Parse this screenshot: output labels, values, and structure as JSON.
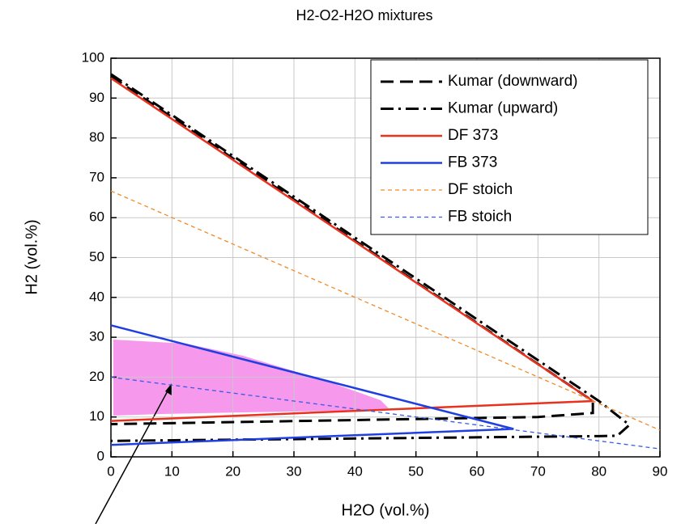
{
  "chart_data": {
    "type": "line",
    "title": "H2-O2-H2O mixtures",
    "x_label": "H2O (vol.%)",
    "y_label": "H2 (vol.%)",
    "xlim": [
      0,
      90
    ],
    "ylim": [
      0,
      100
    ],
    "xticks": [
      0,
      10,
      20,
      30,
      40,
      50,
      60,
      70,
      80,
      90
    ],
    "yticks": [
      0,
      10,
      20,
      30,
      40,
      50,
      60,
      70,
      80,
      90,
      100
    ],
    "grid": true,
    "legend": "upper right",
    "series": [
      {
        "name": "Kumar (downward)",
        "color": "#000000",
        "dash": "dashed",
        "width": 3,
        "x": [
          0,
          79,
          79,
          70,
          0
        ],
        "values": [
          95.5,
          14,
          11,
          10,
          8.2
        ]
      },
      {
        "name": "Kumar (upward)",
        "color": "#000000",
        "dash": "dashdot",
        "width": 3,
        "x": [
          0,
          80,
          85,
          83,
          80,
          0
        ],
        "values": [
          96,
          14,
          8,
          5.3,
          5.2,
          4
        ]
      },
      {
        "name": "DF 373",
        "color": "#e8321e",
        "dash": "solid",
        "width": 2.5,
        "x": [
          0,
          79,
          0
        ],
        "values": [
          95,
          14,
          9
        ]
      },
      {
        "name": "FB 373",
        "color": "#1f3fe0",
        "dash": "solid",
        "width": 2.5,
        "x": [
          0,
          66,
          0
        ],
        "values": [
          33,
          7,
          3
        ]
      },
      {
        "name": "DF stoich",
        "color": "#f08a24",
        "dash": "fine",
        "width": 1.3,
        "x": [
          0,
          90
        ],
        "values": [
          66.7,
          6.7
        ]
      },
      {
        "name": "FB stoich",
        "color": "#3a5ae8",
        "dash": "fine",
        "width": 1.3,
        "x": [
          0,
          90
        ],
        "values": [
          20,
          2
        ]
      }
    ]
  }
}
